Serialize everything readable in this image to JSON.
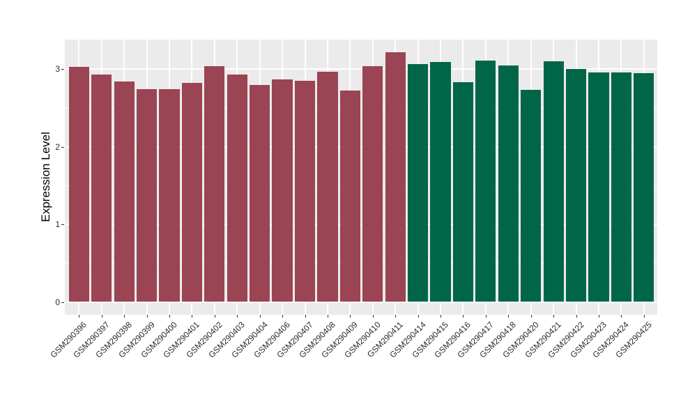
{
  "figure": {
    "background": "#FFFFFF",
    "panel_background": "#EBEBEB",
    "gridline_color": "#FFFFFF",
    "axis_text_color": "#2B2B2B",
    "axis_title_color": "#000000",
    "tick_mark_color": "#333333"
  },
  "chart_data": {
    "type": "bar",
    "title": "",
    "xlabel": "",
    "ylabel": "Expression Level",
    "categories": [
      "GSM290396",
      "GSM290397",
      "GSM290398",
      "GSM290399",
      "GSM290400",
      "GSM290401",
      "GSM290402",
      "GSM290403",
      "GSM290404",
      "GSM290406",
      "GSM290407",
      "GSM290408",
      "GSM290409",
      "GSM290410",
      "GSM290411",
      "GSM290414",
      "GSM290415",
      "GSM290416",
      "GSM290417",
      "GSM290418",
      "GSM290420",
      "GSM290421",
      "GSM290422",
      "GSM290423",
      "GSM290424",
      "GSM290425"
    ],
    "values": [
      3.03,
      2.93,
      2.84,
      2.74,
      2.74,
      2.82,
      3.04,
      2.93,
      2.8,
      2.87,
      2.85,
      2.97,
      2.72,
      3.04,
      3.22,
      3.07,
      3.09,
      2.83,
      3.11,
      3.05,
      2.73,
      3.1,
      3.0,
      2.96,
      2.96,
      2.95
    ],
    "bar_groups": [
      "group1",
      "group1",
      "group1",
      "group1",
      "group1",
      "group1",
      "group1",
      "group1",
      "group1",
      "group1",
      "group1",
      "group1",
      "group1",
      "group1",
      "group1",
      "group2",
      "group2",
      "group2",
      "group2",
      "group2",
      "group2",
      "group2",
      "group2",
      "group2",
      "group2",
      "group2"
    ],
    "group_colors": {
      "group1": "#9B4454",
      "group2": "#006647"
    },
    "yticks": [
      0,
      1,
      2,
      3
    ],
    "minor_yticks": [
      0.5,
      1.5,
      2.5
    ],
    "ylim": [
      0,
      3.38
    ],
    "grid": true,
    "legend": "none",
    "bar_width_fraction": 0.9,
    "x_label_rotation_deg": 45
  }
}
